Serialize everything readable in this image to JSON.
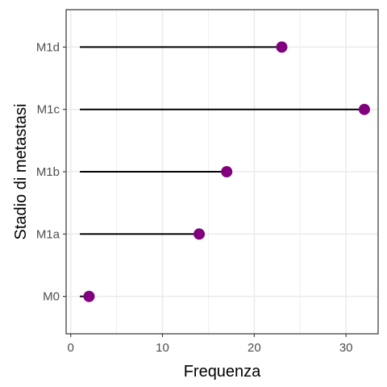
{
  "chart_data": {
    "type": "lollipop",
    "xlabel": "Frequenza",
    "ylabel": "Stadio di metastasi",
    "categories": [
      "M0",
      "M1a",
      "M1b",
      "M1c",
      "M1d"
    ],
    "values": [
      2,
      14,
      17,
      32,
      23
    ],
    "stem_start": 1,
    "xlim": [
      -0.5,
      33.5
    ],
    "xticks": [
      0,
      10,
      20,
      30
    ],
    "xtick_labels": [
      "0",
      "10",
      "20",
      "30"
    ],
    "grid": true,
    "point_color": "#800080",
    "stem_color": "#000000",
    "grid_color": "#ebebeb",
    "panel_border_color": "#333333"
  }
}
